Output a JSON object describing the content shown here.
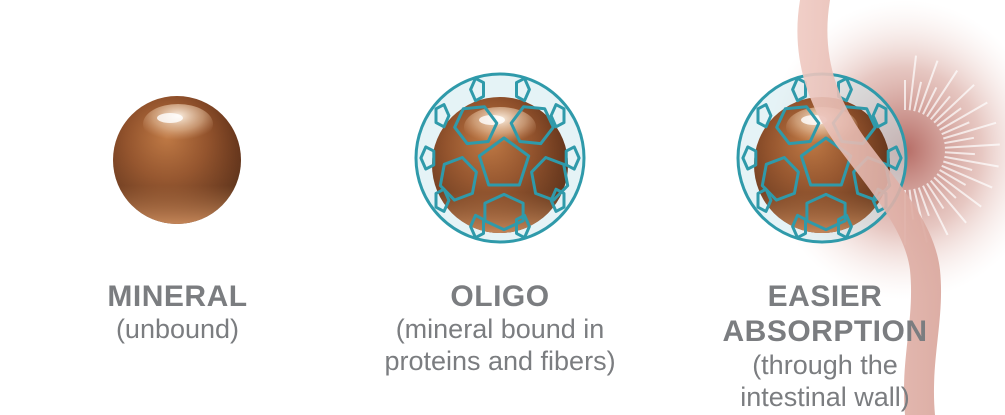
{
  "captions": [
    {
      "title": "MINERAL",
      "subtitle": "(unbound)"
    },
    {
      "title": "OLIGO",
      "subtitle": "(mineral bound in proteins and fibers)"
    },
    {
      "title": "EASIER ABSORPTION",
      "subtitle": "(through the intestinal wall)"
    }
  ],
  "colors": {
    "mineral": "#8a4a28",
    "cage": "#2f9aaa",
    "wall": "#e4b7ae",
    "text": "#7b7d80"
  },
  "icons": [
    "mineral-sphere-icon",
    "protein-cage-icon",
    "intestinal-wall-icon"
  ]
}
